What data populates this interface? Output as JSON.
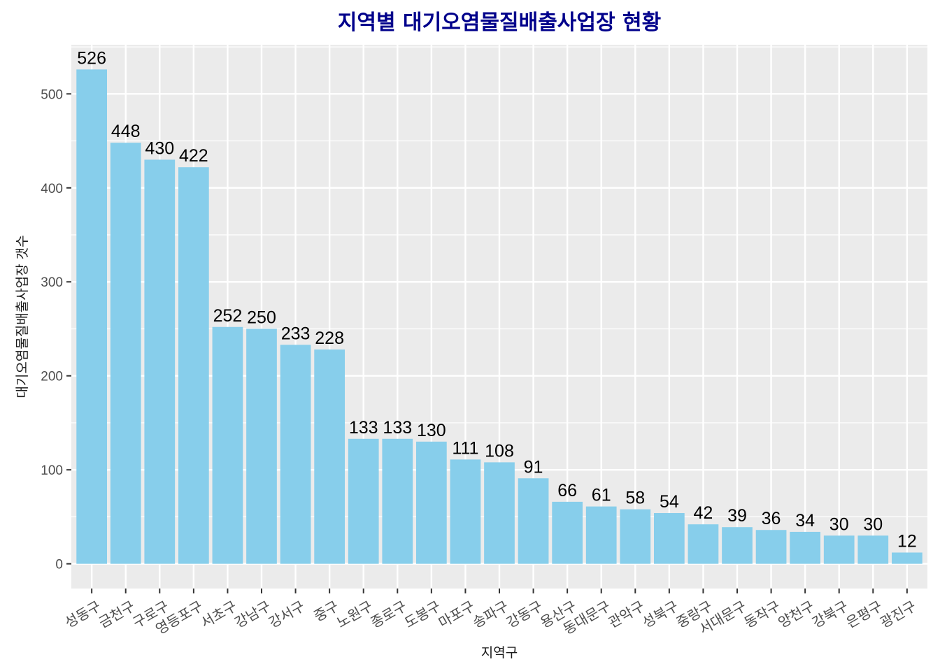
{
  "chart_data": {
    "type": "bar",
    "title": "지역별 대기오염물질배출사업장 현황",
    "xlabel": "지역구",
    "ylabel": "대기오염물질배출사업장 갯수",
    "categories": [
      "성동구",
      "금천구",
      "구로구",
      "영등포구",
      "서초구",
      "강남구",
      "강서구",
      "중구",
      "노원구",
      "종로구",
      "도봉구",
      "마포구",
      "송파구",
      "강동구",
      "용산구",
      "동대문구",
      "관악구",
      "성북구",
      "중랑구",
      "서대문구",
      "동작구",
      "양천구",
      "강북구",
      "은평구",
      "광진구"
    ],
    "values": [
      526,
      448,
      430,
      422,
      252,
      250,
      233,
      228,
      133,
      133,
      130,
      111,
      108,
      91,
      66,
      61,
      58,
      54,
      42,
      39,
      36,
      34,
      30,
      30,
      12
    ],
    "data_labels": [
      "526",
      "448",
      "430",
      "422",
      "252",
      "250",
      "233",
      "228",
      "133",
      "133",
      "130",
      "111",
      "108",
      "91",
      "66",
      "61",
      "58",
      "54",
      "42",
      "39",
      "36",
      "34",
      "30",
      "30",
      "12"
    ],
    "y_ticks": [
      0,
      100,
      200,
      300,
      400,
      500
    ],
    "y_tick_labels": [
      "0",
      "100",
      "200",
      "300",
      "400",
      "500"
    ],
    "ylim": [
      -26.3,
      552.3
    ],
    "grid": true,
    "bar_color": "#87ceeb",
    "panel_color": "#ebebeb",
    "grid_color": "#ffffff",
    "title_color": "#00008b"
  }
}
